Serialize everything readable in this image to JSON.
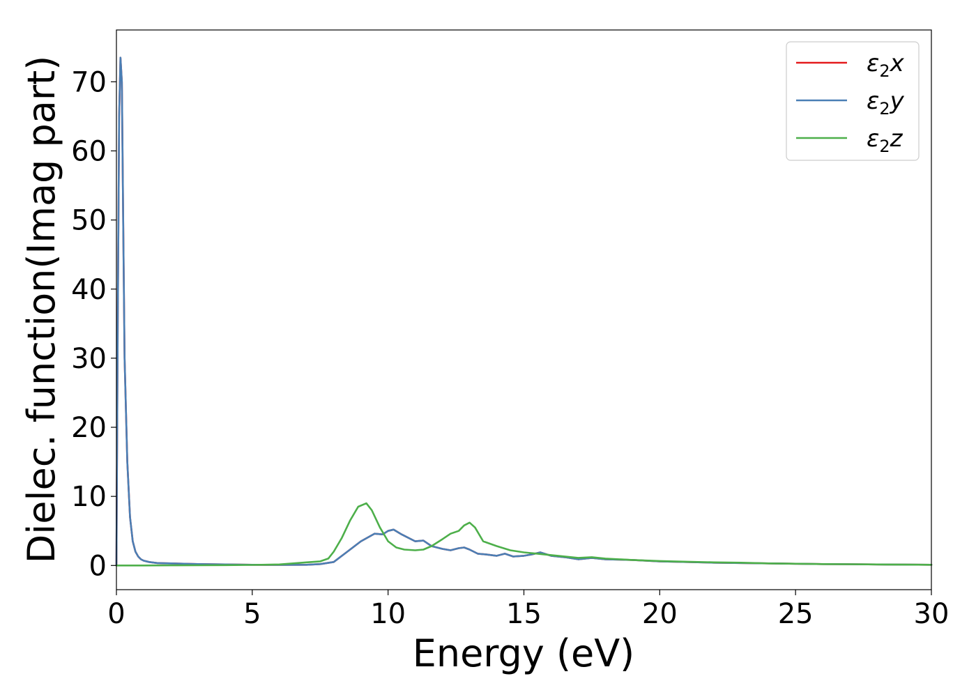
{
  "chart_data": {
    "type": "line",
    "title": "",
    "xlabel": "Energy (eV)",
    "ylabel": "Dielec. function(Imag part)",
    "xlim": [
      0,
      30
    ],
    "ylim": [
      -3.5,
      77.5
    ],
    "x_ticks": [
      0,
      5,
      10,
      15,
      20,
      25,
      30
    ],
    "y_ticks": [
      0,
      10,
      20,
      30,
      40,
      50,
      60,
      70
    ],
    "grid": false,
    "legend_position": "top-right",
    "series": [
      {
        "name": "ε2x",
        "legend_base": "ε",
        "legend_sub": "2",
        "legend_suffix": "x",
        "color": "#e41a1c",
        "x": [
          0,
          0.05,
          0.1,
          0.15,
          0.2,
          0.25,
          0.3,
          0.4,
          0.5,
          0.6,
          0.7,
          0.8,
          0.9,
          1.0,
          1.2,
          1.5,
          2,
          3,
          4,
          5,
          6,
          7,
          7.5,
          8,
          8.5,
          9,
          9.5,
          9.8,
          10,
          10.2,
          10.5,
          11,
          11.3,
          11.6,
          12,
          12.3,
          12.6,
          12.8,
          13,
          13.3,
          13.6,
          14,
          14.3,
          14.6,
          15,
          15.3,
          15.6,
          16,
          16.5,
          17,
          17.5,
          18,
          19,
          20,
          21,
          22,
          23,
          24,
          25,
          26,
          27,
          28,
          29,
          30
        ],
        "values": [
          0,
          35,
          65,
          73.5,
          70,
          50,
          30,
          15,
          7,
          3.5,
          2,
          1.3,
          0.9,
          0.7,
          0.5,
          0.35,
          0.3,
          0.2,
          0.15,
          0.1,
          0.08,
          0.1,
          0.2,
          0.5,
          2.0,
          3.5,
          4.6,
          4.5,
          5.0,
          5.2,
          4.5,
          3.5,
          3.6,
          2.8,
          2.4,
          2.2,
          2.5,
          2.6,
          2.3,
          1.7,
          1.6,
          1.4,
          1.7,
          1.3,
          1.4,
          1.6,
          1.9,
          1.4,
          1.2,
          0.9,
          1.1,
          0.9,
          0.8,
          0.6,
          0.5,
          0.4,
          0.35,
          0.3,
          0.25,
          0.2,
          0.18,
          0.15,
          0.12,
          0.1
        ]
      },
      {
        "name": "ε2y",
        "legend_base": "ε",
        "legend_sub": "2",
        "legend_suffix": "y",
        "color": "#4a7fb5",
        "x": [
          0,
          0.05,
          0.1,
          0.15,
          0.2,
          0.25,
          0.3,
          0.4,
          0.5,
          0.6,
          0.7,
          0.8,
          0.9,
          1.0,
          1.2,
          1.5,
          2,
          3,
          4,
          5,
          6,
          7,
          7.5,
          8,
          8.5,
          9,
          9.5,
          9.8,
          10,
          10.2,
          10.5,
          11,
          11.3,
          11.6,
          12,
          12.3,
          12.6,
          12.8,
          13,
          13.3,
          13.6,
          14,
          14.3,
          14.6,
          15,
          15.3,
          15.6,
          16,
          16.5,
          17,
          17.5,
          18,
          19,
          20,
          21,
          22,
          23,
          24,
          25,
          26,
          27,
          28,
          29,
          30
        ],
        "values": [
          0,
          35,
          65,
          73.5,
          70,
          50,
          30,
          15,
          7,
          3.5,
          2,
          1.3,
          0.9,
          0.7,
          0.5,
          0.35,
          0.3,
          0.2,
          0.15,
          0.1,
          0.08,
          0.1,
          0.2,
          0.5,
          2.0,
          3.5,
          4.6,
          4.5,
          5.0,
          5.2,
          4.5,
          3.5,
          3.6,
          2.8,
          2.4,
          2.2,
          2.5,
          2.6,
          2.3,
          1.7,
          1.6,
          1.4,
          1.7,
          1.3,
          1.4,
          1.6,
          1.9,
          1.4,
          1.2,
          0.9,
          1.1,
          0.9,
          0.8,
          0.6,
          0.5,
          0.4,
          0.35,
          0.3,
          0.25,
          0.2,
          0.18,
          0.15,
          0.12,
          0.1
        ]
      },
      {
        "name": "ε2z",
        "legend_base": "ε",
        "legend_sub": "2",
        "legend_suffix": "z",
        "color": "#4daf4a",
        "x": [
          0,
          1,
          2,
          3,
          4,
          5,
          6,
          6.5,
          7,
          7.5,
          7.8,
          8,
          8.3,
          8.6,
          8.9,
          9.2,
          9.4,
          9.7,
          10,
          10.3,
          10.6,
          11,
          11.3,
          11.6,
          12,
          12.3,
          12.6,
          12.8,
          13,
          13.2,
          13.5,
          14,
          14.5,
          15,
          15.5,
          16,
          16.5,
          17,
          17.5,
          18,
          19,
          20,
          21,
          22,
          23,
          24,
          25,
          26,
          27,
          28,
          29,
          30
        ],
        "values": [
          0,
          0,
          0.02,
          0.03,
          0.05,
          0.08,
          0.15,
          0.3,
          0.45,
          0.6,
          1.0,
          2.0,
          4.0,
          6.5,
          8.5,
          9.0,
          8.0,
          5.5,
          3.5,
          2.6,
          2.3,
          2.2,
          2.3,
          2.8,
          3.8,
          4.6,
          5.0,
          5.8,
          6.2,
          5.5,
          3.5,
          2.8,
          2.2,
          1.9,
          1.7,
          1.5,
          1.3,
          1.1,
          1.2,
          1.0,
          0.8,
          0.65,
          0.55,
          0.45,
          0.4,
          0.3,
          0.25,
          0.2,
          0.18,
          0.15,
          0.12,
          0.1
        ]
      }
    ]
  }
}
